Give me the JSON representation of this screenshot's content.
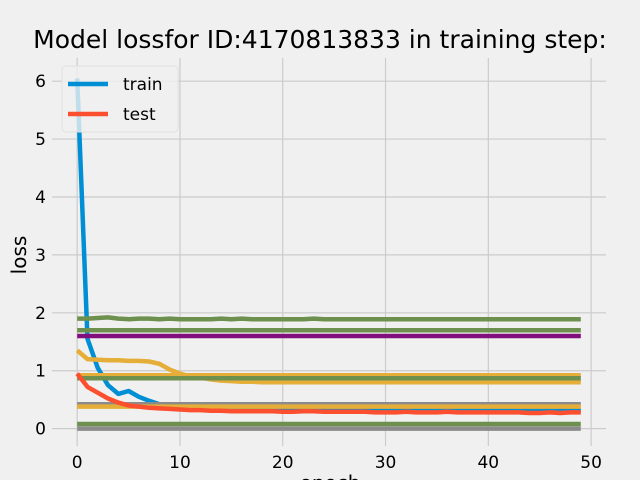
{
  "chart_data": {
    "type": "line",
    "title": "Model lossfor ID:4170813833 in training step:",
    "xlabel": "epoch",
    "ylabel": "loss",
    "xlim": [
      -2.45,
      51.45
    ],
    "ylim": [
      -0.3,
      6.4
    ],
    "xticks": [
      0,
      10,
      20,
      30,
      40,
      50
    ],
    "yticks": [
      0,
      1,
      2,
      3,
      4,
      5,
      6
    ],
    "grid": true,
    "legend_position": "top-left",
    "legend": [
      {
        "name": "train",
        "color": "#008fd5"
      },
      {
        "name": "test",
        "color": "#fc4f30"
      }
    ],
    "series": [
      {
        "name": "train",
        "color": "#008fd5",
        "x": [
          0,
          1,
          2,
          3,
          4,
          5,
          6,
          7,
          8,
          9,
          10,
          11,
          12,
          13,
          14,
          15,
          16,
          17,
          18,
          19,
          20,
          21,
          22,
          23,
          24,
          25,
          26,
          27,
          28,
          29,
          30,
          31,
          32,
          33,
          34,
          35,
          36,
          37,
          38,
          39,
          40,
          41,
          42,
          43,
          44,
          45,
          46,
          47,
          48,
          49
        ],
        "y": [
          6.05,
          1.55,
          1.05,
          0.75,
          0.6,
          0.65,
          0.55,
          0.48,
          0.42,
          0.38,
          0.36,
          0.35,
          0.34,
          0.34,
          0.33,
          0.33,
          0.33,
          0.32,
          0.32,
          0.32,
          0.32,
          0.32,
          0.32,
          0.32,
          0.32,
          0.32,
          0.32,
          0.32,
          0.32,
          0.32,
          0.32,
          0.32,
          0.32,
          0.32,
          0.32,
          0.32,
          0.32,
          0.32,
          0.32,
          0.32,
          0.32,
          0.32,
          0.32,
          0.32,
          0.32,
          0.32,
          0.32,
          0.32,
          0.32,
          0.32
        ]
      },
      {
        "color": "#6d904f",
        "x": [
          0,
          1,
          2,
          3,
          4,
          5,
          6,
          7,
          8,
          9,
          10,
          11,
          12,
          13,
          14,
          15,
          16,
          17,
          18,
          19,
          20,
          21,
          22,
          23,
          24,
          25,
          26,
          27,
          28,
          29,
          30,
          31,
          32,
          33,
          34,
          35,
          36,
          37,
          38,
          39,
          40,
          41,
          42,
          43,
          44,
          45,
          46,
          47,
          48,
          49
        ],
        "y": [
          1.9,
          1.9,
          1.91,
          1.92,
          1.9,
          1.89,
          1.9,
          1.9,
          1.89,
          1.9,
          1.89,
          1.89,
          1.89,
          1.89,
          1.9,
          1.89,
          1.9,
          1.89,
          1.89,
          1.89,
          1.89,
          1.89,
          1.89,
          1.9,
          1.89,
          1.89,
          1.89,
          1.89,
          1.89,
          1.89,
          1.89,
          1.89,
          1.89,
          1.89,
          1.89,
          1.89,
          1.89,
          1.89,
          1.89,
          1.89,
          1.89,
          1.89,
          1.89,
          1.89,
          1.89,
          1.89,
          1.89,
          1.89,
          1.89,
          1.89
        ]
      },
      {
        "color": "#6d904f",
        "x": [
          0,
          49
        ],
        "y": [
          1.7,
          1.7
        ]
      },
      {
        "color": "#810f7c",
        "x": [
          0,
          49
        ],
        "y": [
          1.6,
          1.6
        ]
      },
      {
        "color": "#e5ae38",
        "x": [
          0,
          1,
          2,
          3,
          4,
          5,
          6,
          7,
          8,
          9,
          10,
          11,
          12,
          13,
          14,
          15,
          16,
          17,
          18,
          19,
          20,
          21,
          22,
          23,
          24,
          25,
          26,
          27,
          28,
          29,
          30,
          31,
          32,
          33,
          34,
          35,
          36,
          37,
          38,
          39,
          40,
          41,
          42,
          43,
          44,
          45,
          46,
          47,
          48,
          49
        ],
        "y": [
          1.35,
          1.2,
          1.19,
          1.18,
          1.18,
          1.17,
          1.17,
          1.16,
          1.12,
          1.02,
          0.95,
          0.9,
          0.88,
          0.85,
          0.83,
          0.82,
          0.81,
          0.81,
          0.8,
          0.8,
          0.8,
          0.8,
          0.8,
          0.8,
          0.8,
          0.8,
          0.8,
          0.8,
          0.8,
          0.8,
          0.8,
          0.8,
          0.8,
          0.8,
          0.8,
          0.8,
          0.8,
          0.8,
          0.8,
          0.8,
          0.8,
          0.8,
          0.8,
          0.8,
          0.8,
          0.8,
          0.8,
          0.8,
          0.8,
          0.8
        ]
      },
      {
        "color": "#e5ae38",
        "x": [
          0,
          49
        ],
        "y": [
          0.92,
          0.92
        ]
      },
      {
        "color": "#6d904f",
        "x": [
          0,
          49
        ],
        "y": [
          0.87,
          0.87
        ]
      },
      {
        "color": "#8b8b8b",
        "x": [
          0,
          49
        ],
        "y": [
          0.42,
          0.42
        ]
      },
      {
        "color": "#e5ae38",
        "x": [
          0,
          49
        ],
        "y": [
          0.38,
          0.38
        ]
      },
      {
        "name": "test",
        "color": "#fc4f30",
        "x": [
          0,
          1,
          2,
          3,
          4,
          5,
          6,
          7,
          8,
          9,
          10,
          11,
          12,
          13,
          14,
          15,
          16,
          17,
          18,
          19,
          20,
          21,
          22,
          23,
          24,
          25,
          26,
          27,
          28,
          29,
          30,
          31,
          32,
          33,
          34,
          35,
          36,
          37,
          38,
          39,
          40,
          41,
          42,
          43,
          44,
          45,
          46,
          47,
          48,
          49
        ],
        "y": [
          0.95,
          0.72,
          0.62,
          0.52,
          0.45,
          0.4,
          0.38,
          0.36,
          0.35,
          0.34,
          0.33,
          0.32,
          0.32,
          0.31,
          0.31,
          0.3,
          0.3,
          0.3,
          0.3,
          0.3,
          0.29,
          0.29,
          0.3,
          0.3,
          0.29,
          0.29,
          0.29,
          0.29,
          0.29,
          0.28,
          0.28,
          0.28,
          0.29,
          0.28,
          0.28,
          0.28,
          0.29,
          0.28,
          0.28,
          0.28,
          0.28,
          0.28,
          0.28,
          0.28,
          0.27,
          0.27,
          0.28,
          0.27,
          0.28,
          0.28
        ]
      },
      {
        "color": "#6d904f",
        "x": [
          0,
          49
        ],
        "y": [
          0.08,
          0.08
        ]
      },
      {
        "color": "#8b8b8b",
        "x": [
          0,
          49
        ],
        "y": [
          0.0,
          0.0
        ]
      }
    ]
  }
}
